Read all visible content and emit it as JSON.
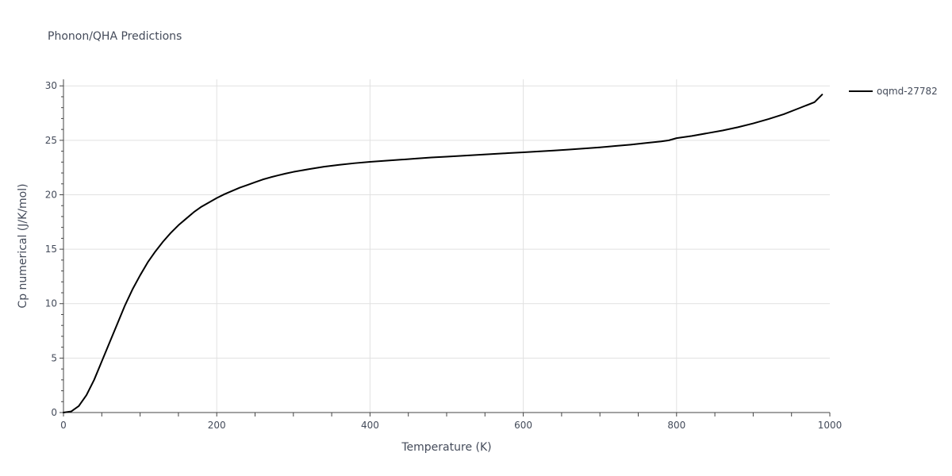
{
  "chart_data": {
    "type": "line",
    "title": "Phonon/QHA Predictions",
    "xlabel": "Temperature (K)",
    "ylabel": "Cp numerical (J/K/mol)",
    "xlim": [
      0,
      1000
    ],
    "ylim": [
      0,
      30.6
    ],
    "x_ticks": [
      0,
      200,
      400,
      600,
      800,
      1000
    ],
    "y_ticks": [
      0,
      5,
      10,
      15,
      20,
      25,
      30
    ],
    "x_tick_labels": [
      "0",
      "200",
      "400",
      "600",
      "800",
      "1000"
    ],
    "y_tick_labels": [
      "0",
      "5",
      "10",
      "15",
      "20",
      "25",
      "30"
    ],
    "grid": true,
    "legend_position": "top-right",
    "series": [
      {
        "name": "oqmd-27782",
        "color": "#000000",
        "x": [
          0,
          10,
          20,
          30,
          40,
          50,
          60,
          70,
          80,
          90,
          100,
          110,
          120,
          130,
          140,
          150,
          160,
          170,
          180,
          190,
          200,
          210,
          220,
          230,
          240,
          250,
          260,
          270,
          280,
          290,
          300,
          320,
          340,
          360,
          380,
          400,
          420,
          440,
          460,
          480,
          500,
          520,
          540,
          560,
          580,
          600,
          620,
          640,
          660,
          680,
          700,
          720,
          740,
          760,
          780,
          790,
          800,
          820,
          840,
          860,
          880,
          900,
          920,
          940,
          960,
          980,
          990
        ],
        "y": [
          0,
          0.1,
          0.6,
          1.6,
          3.0,
          4.7,
          6.4,
          8.1,
          9.8,
          11.3,
          12.6,
          13.8,
          14.8,
          15.7,
          16.5,
          17.2,
          17.8,
          18.4,
          18.9,
          19.3,
          19.7,
          20.05,
          20.35,
          20.65,
          20.9,
          21.15,
          21.4,
          21.6,
          21.78,
          21.95,
          22.1,
          22.35,
          22.58,
          22.75,
          22.9,
          23.02,
          23.12,
          23.22,
          23.32,
          23.42,
          23.5,
          23.58,
          23.66,
          23.74,
          23.82,
          23.9,
          23.98,
          24.06,
          24.15,
          24.25,
          24.35,
          24.48,
          24.6,
          24.75,
          24.9,
          25.0,
          25.2,
          25.4,
          25.65,
          25.9,
          26.2,
          26.55,
          26.95,
          27.4,
          27.95,
          28.5,
          29.2
        ]
      }
    ]
  }
}
